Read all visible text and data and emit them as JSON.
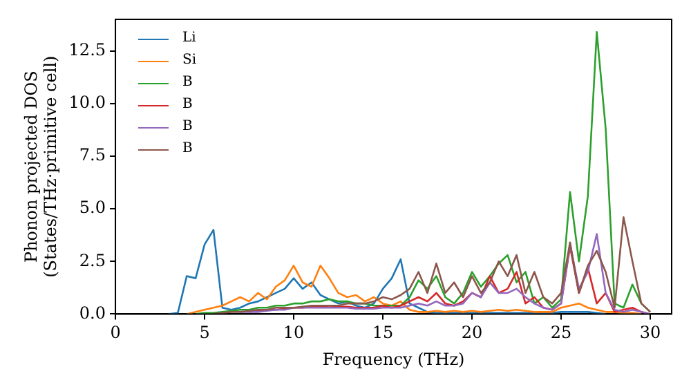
{
  "chart_data": {
    "type": "line",
    "xlabel": "Frequency (THz)",
    "ylabel": "Phonon projected DOS\n(States/THz·primitive cell)",
    "xlim": [
      0,
      31.2
    ],
    "ylim": [
      0,
      14
    ],
    "xticks": [
      0,
      5,
      10,
      15,
      20,
      25,
      30
    ],
    "yticks": [
      {
        "value": 0,
        "label": "0.0"
      },
      {
        "value": 2.5,
        "label": "2.5"
      },
      {
        "value": 5,
        "label": "5.0"
      },
      {
        "value": 7.5,
        "label": "7.5"
      },
      {
        "value": 10,
        "label": "10.0"
      },
      12.5
    ],
    "grid": false,
    "legend": "top left",
    "marker": "none",
    "line_style": "solid",
    "x": [
      3,
      3.5,
      4,
      4.5,
      5,
      5.5,
      6,
      6.5,
      7,
      7.5,
      8,
      8.5,
      9,
      9.5,
      10,
      10.5,
      11,
      11.5,
      12,
      12.5,
      13,
      13.5,
      14,
      14.5,
      15,
      15.5,
      16,
      16.5,
      17,
      17.5,
      18,
      18.5,
      19,
      19.5,
      20,
      20.5,
      21,
      21.5,
      22,
      22.5,
      23,
      23.5,
      24,
      24.5,
      25,
      25.5,
      26,
      26.5,
      27,
      27.5,
      28,
      28.5,
      29,
      29.5,
      30
    ],
    "series": [
      {
        "name": "Li",
        "color": "#1f77b4",
        "values": [
          0,
          0.05,
          1.8,
          1.7,
          3.3,
          4.0,
          0.3,
          0.2,
          0.3,
          0.5,
          0.6,
          0.8,
          1.0,
          1.2,
          1.7,
          1.2,
          1.5,
          0.9,
          0.7,
          0.5,
          0.6,
          0.4,
          0.3,
          0.5,
          1.2,
          1.7,
          2.6,
          0.5,
          0.3,
          0.1,
          0.05,
          0.05,
          0.05,
          0.05,
          0.05,
          0.05,
          0.05,
          0.05,
          0.05,
          0.05,
          0.05,
          0.05,
          0.05,
          0.05,
          0.1,
          0.1,
          0.1,
          0.1,
          0.05,
          0,
          null,
          null,
          null,
          null,
          null
        ]
      },
      {
        "name": "Si",
        "color": "#ff7f0e",
        "values": [
          null,
          null,
          0,
          0.1,
          0.2,
          0.3,
          0.4,
          0.6,
          0.8,
          0.6,
          1.0,
          0.7,
          1.3,
          1.6,
          2.3,
          1.5,
          1.3,
          2.3,
          1.7,
          1.0,
          0.8,
          0.9,
          0.6,
          0.8,
          0.5,
          0.4,
          0.6,
          0.2,
          0.1,
          0.1,
          0.15,
          0.1,
          0.15,
          0.1,
          0.15,
          0.1,
          0.15,
          0.2,
          0.15,
          0.2,
          0.15,
          0.1,
          0.1,
          0.1,
          0.3,
          0.4,
          0.5,
          0.3,
          0.2,
          0.1,
          0.1,
          0.05,
          0.05,
          0,
          null
        ]
      },
      {
        "name": "B",
        "color": "#2ca02c",
        "values": [
          null,
          null,
          null,
          0,
          0.05,
          0.05,
          0.1,
          0.15,
          0.2,
          0.2,
          0.3,
          0.3,
          0.4,
          0.4,
          0.5,
          0.5,
          0.6,
          0.6,
          0.7,
          0.6,
          0.6,
          0.5,
          0.5,
          0.4,
          0.4,
          0.4,
          0.4,
          0.8,
          1.6,
          1.2,
          1.8,
          0.8,
          0.5,
          1.0,
          2.0,
          1.3,
          1.8,
          2.4,
          2.8,
          1.5,
          2.0,
          0.5,
          0.8,
          0.3,
          0.7,
          5.8,
          2.5,
          5.6,
          13.4,
          8.8,
          0.5,
          0.3,
          1.4,
          0.5,
          0.1
        ]
      },
      {
        "name": "B",
        "color": "#d62728",
        "values": [
          null,
          null,
          null,
          null,
          null,
          null,
          null,
          null,
          null,
          0.1,
          0.15,
          0.2,
          0.2,
          0.25,
          0.3,
          0.3,
          0.35,
          0.35,
          0.4,
          0.35,
          0.35,
          0.3,
          0.3,
          0.3,
          0.4,
          0.3,
          0.4,
          0.6,
          0.8,
          0.6,
          1.0,
          0.5,
          0.4,
          0.6,
          1.0,
          0.8,
          1.8,
          1.0,
          1.2,
          2.0,
          0.5,
          0.8,
          0.3,
          0.2,
          0.5,
          3.2,
          1.0,
          2.2,
          0.5,
          1.0,
          0.1,
          0.2,
          0.3,
          0.1,
          0
        ]
      },
      {
        "name": "B",
        "color": "#9467bd",
        "values": [
          null,
          null,
          null,
          null,
          null,
          null,
          null,
          null,
          0.1,
          0.1,
          0.1,
          0.15,
          0.2,
          0.2,
          0.3,
          0.3,
          0.3,
          0.3,
          0.3,
          0.3,
          0.3,
          0.25,
          0.25,
          0.25,
          0.3,
          0.3,
          0.3,
          0.4,
          0.5,
          0.4,
          0.6,
          0.4,
          0.4,
          0.5,
          1.0,
          0.8,
          1.5,
          1.0,
          1.0,
          1.2,
          0.8,
          0.5,
          0.3,
          0.2,
          0.5,
          3.3,
          1.2,
          2.0,
          3.8,
          1.0,
          0.2,
          0.1,
          0.2,
          0.1,
          0
        ]
      },
      {
        "name": "B",
        "color": "#8c564b",
        "values": [
          null,
          null,
          null,
          null,
          null,
          0,
          0.05,
          0.1,
          0.1,
          0.15,
          0.2,
          0.2,
          0.3,
          0.3,
          0.3,
          0.35,
          0.4,
          0.4,
          0.4,
          0.4,
          0.5,
          0.5,
          0.5,
          0.6,
          0.8,
          0.7,
          0.9,
          1.2,
          2.0,
          1.0,
          2.4,
          1.0,
          1.5,
          0.8,
          1.8,
          1.0,
          1.5,
          2.5,
          1.8,
          2.8,
          1.0,
          2.0,
          0.8,
          0.5,
          1.0,
          3.4,
          1.0,
          2.3,
          3.0,
          2.0,
          0.3,
          4.6,
          2.5,
          0.5,
          0.1
        ]
      }
    ]
  }
}
